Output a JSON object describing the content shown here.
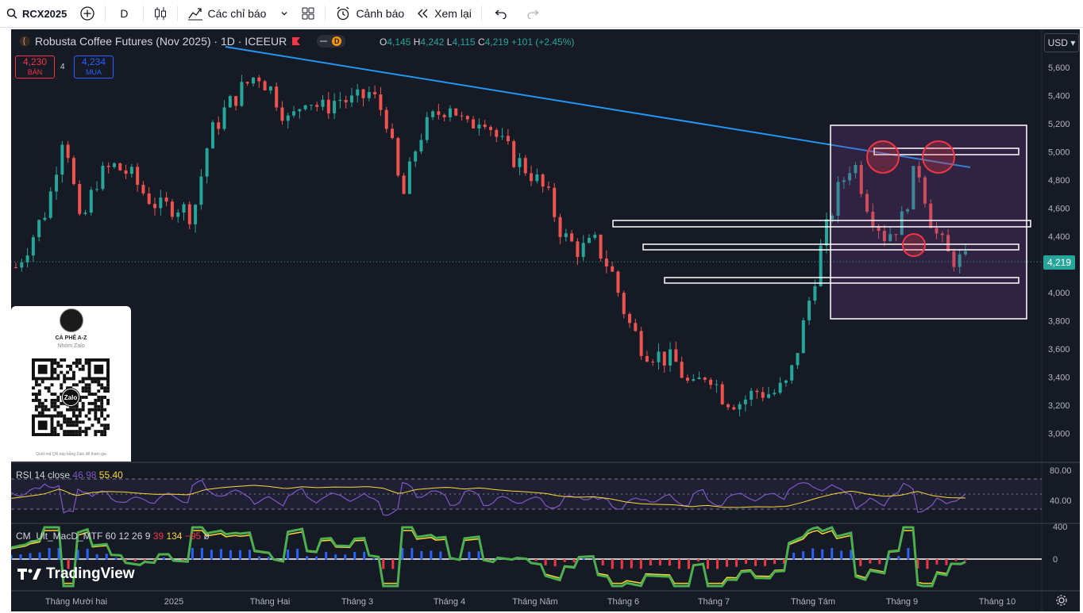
{
  "toolbar": {
    "symbol": "RCX2025",
    "interval": "D",
    "indicators_label": "Các chỉ báo",
    "alert_label": "Cảnh báo",
    "replay_label": "Xem lại"
  },
  "legend": {
    "title": "Robusta Coffee Futures (Nov 2025) · 1D · ICEEUR",
    "open_label": "O",
    "open": "4,145",
    "high_label": "H",
    "high": "4,242",
    "low_label": "L",
    "low": "4,115",
    "close_label": "C",
    "close": "4,219",
    "change": "+101 (+2.45%)",
    "sell_price": "4,230",
    "sell_label": "BÁN",
    "spread": "4",
    "buy_price": "4,234",
    "buy_label": "MUA"
  },
  "currency": "USD",
  "last_price": "4,219",
  "price_axis": [
    "5,600",
    "5,400",
    "5,200",
    "5,000",
    "4,800",
    "4,600",
    "4,400",
    "4,200",
    "4,000",
    "3,800",
    "3,600",
    "3,400",
    "3,200",
    "3,000"
  ],
  "time_axis": [
    "Tháng Mười hai",
    "2025",
    "Tháng Hai",
    "Tháng 3",
    "Tháng 4",
    "Tháng Năm",
    "Tháng 6",
    "Tháng 7",
    "Tháng Tám",
    "Tháng 9",
    "Tháng 10"
  ],
  "rsi": {
    "label": "RSI 14 close",
    "value1": "46.98",
    "value2": "55.40",
    "axis_top": "80.00",
    "axis_bottom": "40.00"
  },
  "macd": {
    "label": "CM_Ult_MacD_MTF 60 12 26 9",
    "v1": "39",
    "v2": "134",
    "v3": "−95",
    "v4": "ø",
    "axis_top": "400",
    "axis_zero": "0"
  },
  "zalo": {
    "name": "CÀ PHÊ A-Z",
    "sub": "Nhóm Zalo",
    "footer": "Quét mã QR này bằng Zalo để tham gia",
    "logo": "Zalo"
  },
  "brand": "TradingView",
  "colors": {
    "up": "#26a69a",
    "down": "#ef5350",
    "trend": "#2196f3",
    "highlight": "#f23645"
  },
  "chart_data": {
    "type": "candlestick",
    "title": "Robusta Coffee Futures (Nov 2025) · 1D · ICEEUR",
    "ylim": [
      2900,
      5720
    ],
    "close_path": [
      [
        "Dec 2024",
        4180
      ],
      [
        "",
        4390
      ],
      [
        "",
        4620
      ],
      [
        "",
        5180
      ],
      [
        "",
        4450
      ],
      [
        "",
        4800
      ],
      [
        "",
        4900
      ],
      [
        "",
        4850
      ],
      [
        "",
        4700
      ],
      [
        "",
        4600
      ],
      [
        "",
        4620
      ],
      [
        "",
        4550
      ],
      [
        "Feb 2025",
        5100
      ],
      [
        "",
        5300
      ],
      [
        "",
        5440
      ],
      [
        "",
        5560
      ],
      [
        "",
        5420
      ],
      [
        "",
        5200
      ],
      [
        "Mar 2025",
        5400
      ],
      [
        "",
        5300
      ],
      [
        "",
        5380
      ],
      [
        "",
        5350
      ],
      [
        "",
        5420
      ],
      [
        "",
        5250
      ],
      [
        "Apr 2025",
        4650
      ],
      [
        "",
        5100
      ],
      [
        "",
        5250
      ],
      [
        "",
        5350
      ],
      [
        "",
        5160
      ],
      [
        "",
        5280
      ],
      [
        "May 2025",
        5080
      ],
      [
        "",
        4950
      ],
      [
        "",
        4850
      ],
      [
        "",
        4700
      ],
      [
        "",
        4400
      ],
      [
        "",
        4300
      ],
      [
        "Jun 2025",
        4350
      ],
      [
        "",
        4150
      ],
      [
        "",
        3800
      ],
      [
        "",
        3600
      ],
      [
        "",
        3550
      ],
      [
        "",
        3500
      ],
      [
        "Jul 2025",
        3300
      ],
      [
        "",
        3450
      ],
      [
        "",
        3250
      ],
      [
        "",
        3220
      ],
      [
        "",
        3300
      ],
      [
        "",
        3280
      ],
      [
        "Aug 2025",
        3350
      ],
      [
        "",
        3800
      ],
      [
        "",
        4300
      ],
      [
        "",
        4700
      ],
      [
        "",
        4950
      ],
      [
        "",
        4600
      ],
      [
        "Sep 2025",
        4400
      ],
      [
        "",
        4500
      ],
      [
        "",
        4920
      ],
      [
        "",
        4450
      ],
      [
        "",
        4250
      ],
      [
        "",
        4219
      ]
    ],
    "horizontal_levels": [
      5000,
      4500,
      4330,
      4110
    ],
    "trendline": [
      [
        5640,
        "Dec 2024"
      ],
      [
        4890,
        "Sep 2025"
      ]
    ]
  }
}
